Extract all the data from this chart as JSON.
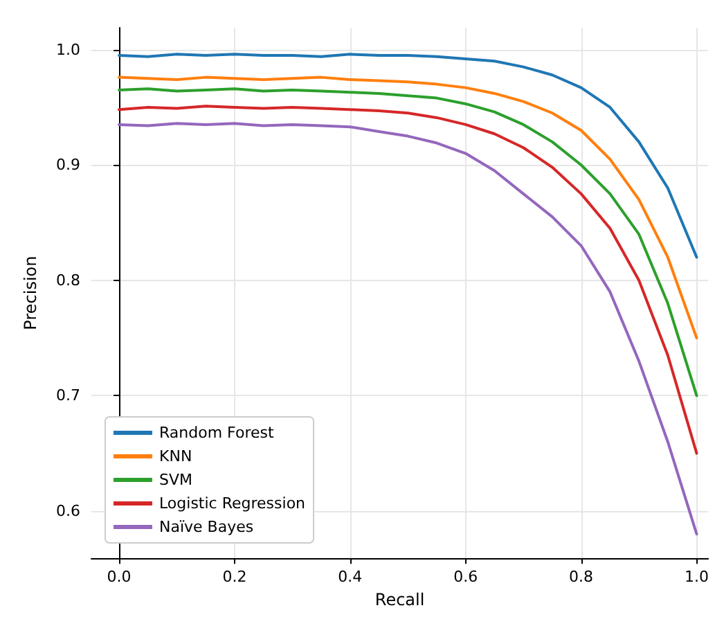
{
  "chart_data": {
    "type": "line",
    "xlabel": "Recall",
    "ylabel": "Precision",
    "x": [
      0,
      0.05,
      0.1,
      0.15,
      0.2,
      0.25,
      0.3,
      0.35,
      0.4,
      0.45,
      0.5,
      0.55,
      0.6,
      0.65,
      0.7,
      0.75,
      0.8,
      0.85,
      0.9,
      0.95,
      1.0
    ],
    "series": [
      {
        "name": "Random Forest",
        "color": "#1f77b4",
        "values": [
          0.995,
          0.994,
          0.996,
          0.995,
          0.996,
          0.995,
          0.995,
          0.994,
          0.996,
          0.995,
          0.995,
          0.994,
          0.992,
          0.99,
          0.985,
          0.978,
          0.967,
          0.95,
          0.92,
          0.88,
          0.82
        ]
      },
      {
        "name": "KNN",
        "color": "#ff7f0e",
        "values": [
          0.976,
          0.975,
          0.974,
          0.976,
          0.975,
          0.974,
          0.975,
          0.976,
          0.974,
          0.973,
          0.972,
          0.97,
          0.967,
          0.962,
          0.955,
          0.945,
          0.93,
          0.905,
          0.87,
          0.82,
          0.75
        ]
      },
      {
        "name": "SVM",
        "color": "#2ca02c",
        "values": [
          0.965,
          0.966,
          0.964,
          0.965,
          0.966,
          0.964,
          0.965,
          0.964,
          0.963,
          0.962,
          0.96,
          0.958,
          0.953,
          0.946,
          0.935,
          0.92,
          0.9,
          0.875,
          0.84,
          0.78,
          0.7
        ]
      },
      {
        "name": "Logistic Regression",
        "color": "#d62728",
        "values": [
          0.948,
          0.95,
          0.949,
          0.951,
          0.95,
          0.949,
          0.95,
          0.949,
          0.948,
          0.947,
          0.945,
          0.941,
          0.935,
          0.927,
          0.915,
          0.898,
          0.875,
          0.845,
          0.8,
          0.735,
          0.65
        ]
      },
      {
        "name": "Naïve Bayes",
        "color": "#9467bd",
        "values": [
          0.935,
          0.934,
          0.936,
          0.935,
          0.936,
          0.934,
          0.935,
          0.934,
          0.933,
          0.929,
          0.925,
          0.919,
          0.91,
          0.895,
          0.875,
          0.855,
          0.83,
          0.79,
          0.73,
          0.66,
          0.58
        ]
      }
    ],
    "xlim": [
      -0.048,
      1.02
    ],
    "ylim": [
      0.559,
      1.019
    ],
    "xticks": [
      {
        "value": 0,
        "label": "0.0"
      },
      0.2,
      0.4,
      0.6,
      0.8,
      {
        "value": 1,
        "label": "1.0"
      }
    ],
    "yticks": [
      0.6,
      0.7,
      0.8,
      0.9,
      {
        "value": 1,
        "label": "1.0"
      }
    ],
    "grid": true,
    "legend": "bottom left",
    "marker": "none",
    "line_style": "solid"
  }
}
